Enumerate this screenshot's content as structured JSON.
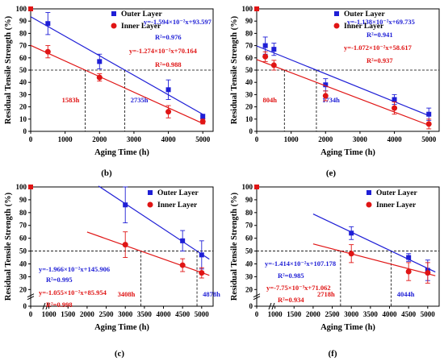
{
  "colors": {
    "outer": "#1f1fd6",
    "inner": "#e01515",
    "guide": "#000000"
  },
  "chart_data": [
    {
      "type": "scatter",
      "panel_label": "(b)",
      "xlabel": "Aging Time (h)",
      "ylabel": "Residual Tensile Strength (%)",
      "xlim": [
        0,
        5300
      ],
      "ylim": [
        0,
        100
      ],
      "xticks": [
        0,
        1000,
        2000,
        3000,
        4000,
        5000
      ],
      "xtick_labels": [
        "0",
        "1000",
        "2000",
        "3000",
        "4000",
        "5000"
      ],
      "yticks": [
        0,
        10,
        20,
        30,
        40,
        50,
        60,
        70,
        80,
        90,
        100
      ],
      "ytick_labels": [
        "0",
        "10",
        "20",
        "30",
        "40",
        "50",
        "60",
        "70",
        "80",
        "90",
        "100"
      ],
      "origin_point": {
        "x": 0,
        "y": 100
      },
      "threshold": 50,
      "legend": [
        "Outer Layer",
        "Inner Layer"
      ],
      "series": [
        {
          "name": "Outer Layer",
          "x": [
            500,
            2000,
            4000,
            5000
          ],
          "y": [
            88,
            57,
            34,
            12
          ],
          "err": [
            9,
            6,
            8,
            2
          ],
          "fit": {
            "slope": -0.01594,
            "intercept": 93.597,
            "x_range": [
              0,
              5000
            ]
          },
          "equation": "y=-1.594×10⁻²x+93.597",
          "r2": "R²=0.976",
          "cross_label": "2735h",
          "cross_x": 2735
        },
        {
          "name": "Inner Layer",
          "x": [
            500,
            2000,
            4000,
            5000
          ],
          "y": [
            65,
            44,
            16,
            8
          ],
          "err": [
            5,
            3,
            5,
            2
          ],
          "fit": {
            "slope": -0.01274,
            "intercept": 70.164,
            "x_range": [
              0,
              5000
            ]
          },
          "equation": "y=-1.274×10⁻²x+70.164",
          "r2": "R²=0.988",
          "cross_label": "1583h",
          "cross_x": 1583
        }
      ]
    },
    {
      "type": "scatter",
      "panel_label": "(e)",
      "xlabel": "Aging Time (h)",
      "ylabel": "Residual Tensile Strength (%)",
      "xlim": [
        0,
        5300
      ],
      "ylim": [
        0,
        100
      ],
      "xticks": [
        0,
        1000,
        2000,
        3000,
        4000,
        5000
      ],
      "xtick_labels": [
        "0",
        "1000",
        "2000",
        "3000",
        "4000",
        "5000"
      ],
      "yticks": [
        0,
        10,
        20,
        30,
        40,
        50,
        60,
        70,
        80,
        90,
        100
      ],
      "ytick_labels": [
        "0",
        "10",
        "20",
        "30",
        "40",
        "50",
        "60",
        "70",
        "80",
        "90",
        "100"
      ],
      "origin_point": {
        "x": 0,
        "y": 100
      },
      "threshold": 50,
      "legend": [
        "Outer Layer",
        "Inner Layer"
      ],
      "series": [
        {
          "name": "Outer Layer",
          "x": [
            250,
            500,
            2000,
            4000,
            5000
          ],
          "y": [
            70,
            67,
            38,
            26,
            14
          ],
          "err": [
            7,
            5,
            5,
            4,
            5
          ],
          "fit": {
            "slope": -0.01138,
            "intercept": 69.735,
            "x_range": [
              0,
              5000
            ]
          },
          "equation": "y=-1.138×10⁻²x+69.735",
          "r2": "R²=0.941",
          "cross_label": "1734h",
          "cross_x": 1734
        },
        {
          "name": "Inner Layer",
          "x": [
            250,
            500,
            2000,
            4000,
            5000
          ],
          "y": [
            61,
            54,
            29,
            19,
            6
          ],
          "err": [
            4,
            4,
            4,
            5,
            4
          ],
          "fit": {
            "slope": -0.01072,
            "intercept": 58.617,
            "x_range": [
              0,
              5000
            ]
          },
          "equation": "y=-1.072×10⁻²x+58.617",
          "r2": "R²=0.937",
          "cross_label": "804h",
          "cross_x": 804
        }
      ]
    },
    {
      "type": "scatter",
      "panel_label": "(c)",
      "xlabel": "Aging Time (h)",
      "ylabel": "Residual Tensile Strength (%)",
      "xlim": [
        0,
        5300
      ],
      "ylim": [
        0,
        100
      ],
      "xticks": [
        0,
        1000,
        1500,
        2000,
        2500,
        3000,
        3500,
        4000,
        4500,
        5000
      ],
      "xtick_labels": [
        "0",
        "1000",
        "1500",
        "2000",
        "2500",
        "3000",
        "3500",
        "4000",
        "4500",
        "5000"
      ],
      "yticks": [
        0,
        20,
        30,
        40,
        50,
        60,
        70,
        80,
        90,
        100
      ],
      "ytick_labels": [
        "0",
        "20",
        "30",
        "40",
        "50",
        "60",
        "70",
        "80",
        "90",
        "100"
      ],
      "axis_break": true,
      "origin_point": {
        "x": 0,
        "y": 100
      },
      "threshold": 50,
      "legend": [
        "Outer Layer",
        "Inner Layer"
      ],
      "series": [
        {
          "name": "Outer Layer",
          "x": [
            3000,
            4500,
            5000
          ],
          "y": [
            86,
            58,
            47
          ],
          "err": [
            14,
            8,
            11
          ],
          "fit": {
            "slope": -0.01966,
            "intercept": 145.906,
            "x_range": [
              2300,
              5200
            ]
          },
          "equation": "y=-1.966×10⁻²x+145.906",
          "r2": "R²=0.995",
          "cross_label": "4878h",
          "cross_x": 4878
        },
        {
          "name": "Inner Layer",
          "x": [
            3000,
            4500,
            5000
          ],
          "y": [
            55,
            39,
            33
          ],
          "err": [
            10,
            5,
            4
          ],
          "fit": {
            "slope": -0.01055,
            "intercept": 85.954,
            "x_range": [
              2000,
              5200
            ]
          },
          "equation": "y=-1.055×10⁻²x+85.954",
          "r2": "R²=0.998",
          "cross_label": "3408h",
          "cross_x": 3408
        }
      ]
    },
    {
      "type": "scatter",
      "panel_label": "(f)",
      "xlabel": "Aging Time (h)",
      "ylabel": "Residual Tensile Strength (%)",
      "xlim": [
        0,
        5300
      ],
      "ylim": [
        0,
        100
      ],
      "xticks": [
        0,
        1000,
        1500,
        2000,
        2500,
        3000,
        3500,
        4000,
        4500,
        5000
      ],
      "xtick_labels": [
        "0",
        "1000",
        "1500",
        "2000",
        "2500",
        "3000",
        "3500",
        "4000",
        "4500",
        "5000"
      ],
      "yticks": [
        0,
        20,
        30,
        40,
        50,
        60,
        70,
        80,
        90,
        100
      ],
      "ytick_labels": [
        "0",
        "20",
        "30",
        "40",
        "50",
        "60",
        "70",
        "80",
        "90",
        "100"
      ],
      "axis_break": true,
      "origin_point": {
        "x": 0,
        "y": 100
      },
      "threshold": 50,
      "legend": [
        "Outer Layer",
        "Inner Layer"
      ],
      "series": [
        {
          "name": "Outer Layer",
          "x": [
            3000,
            4500,
            5000
          ],
          "y": [
            64,
            45,
            35
          ],
          "err": [
            5,
            3,
            8
          ],
          "fit": {
            "slope": -0.01414,
            "intercept": 107.178,
            "x_range": [
              2000,
              5200
            ]
          },
          "equation": "y=-1.414×10⁻²x+107.178",
          "r2": "R²=0.985",
          "cross_label": "4044h",
          "cross_x": 4044
        },
        {
          "name": "Inner Layer",
          "x": [
            3000,
            4500,
            5000
          ],
          "y": [
            48,
            34,
            33
          ],
          "err": [
            7,
            7,
            8
          ],
          "fit": {
            "slope": -0.00775,
            "intercept": 71.062,
            "x_range": [
              2000,
              5200
            ]
          },
          "equation": "y=-7.75×10⁻³x+71.062",
          "r2": "R²=0.934",
          "cross_label": "2718h",
          "cross_x": 2718
        }
      ]
    }
  ]
}
